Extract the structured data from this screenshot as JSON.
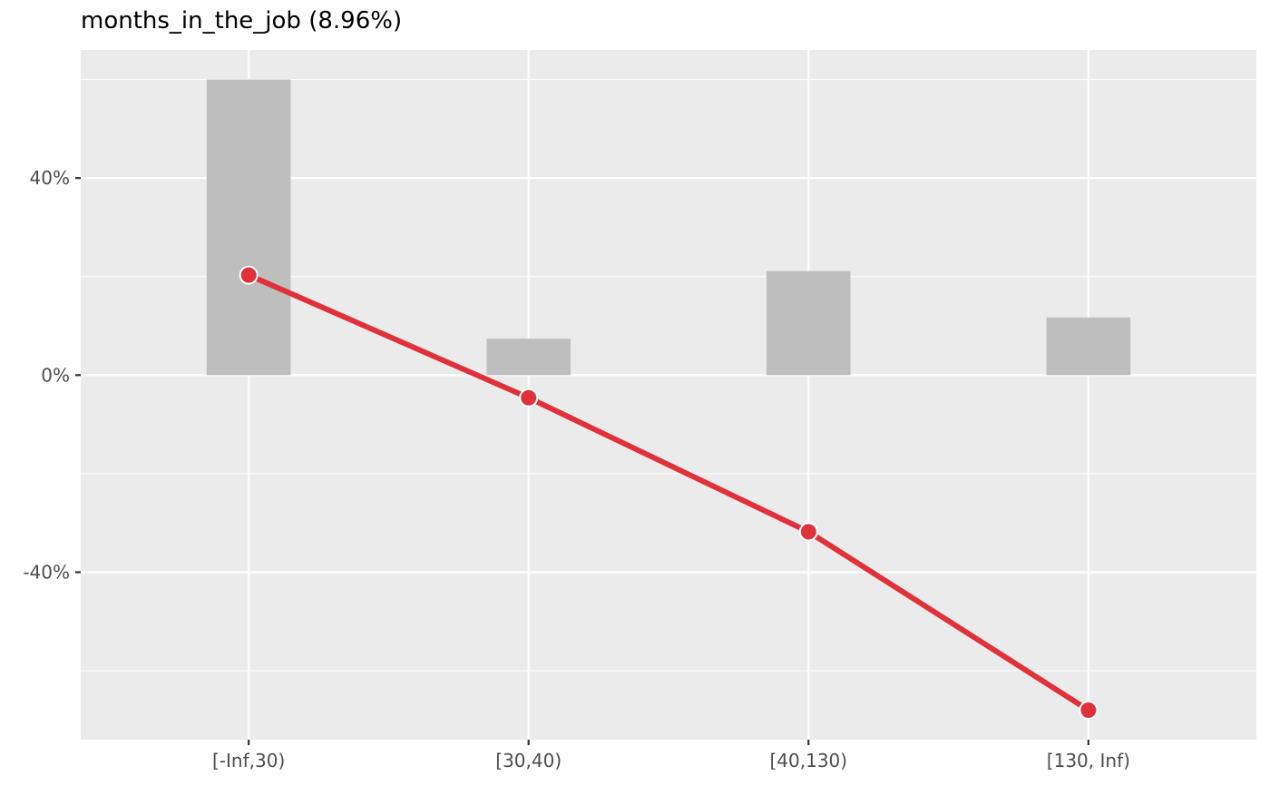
{
  "chart_data": {
    "type": "bar",
    "title": "months_in_the_job (8.96%)",
    "categories": [
      "[-Inf,30)",
      "[30,40)",
      "[40,130)",
      "[130, Inf)"
    ],
    "series": [
      {
        "type": "bar",
        "values": [
          60.0,
          7.4,
          21.1,
          11.7
        ]
      },
      {
        "type": "line",
        "values": [
          20.3,
          -4.6,
          -31.8,
          -68.0
        ]
      }
    ],
    "ylim": [
      -74,
      66
    ],
    "yticks": [
      -40,
      0,
      40
    ],
    "ytick_labels": [
      "-40%",
      "0%",
      "40%"
    ],
    "xlabel": "",
    "ylabel": "",
    "grid": true,
    "colors": {
      "panel": "#ebebeb",
      "grid": "#ffffff",
      "bar": "#bebebe",
      "line": "#e0303a",
      "point_stroke": "#ffffff"
    }
  }
}
